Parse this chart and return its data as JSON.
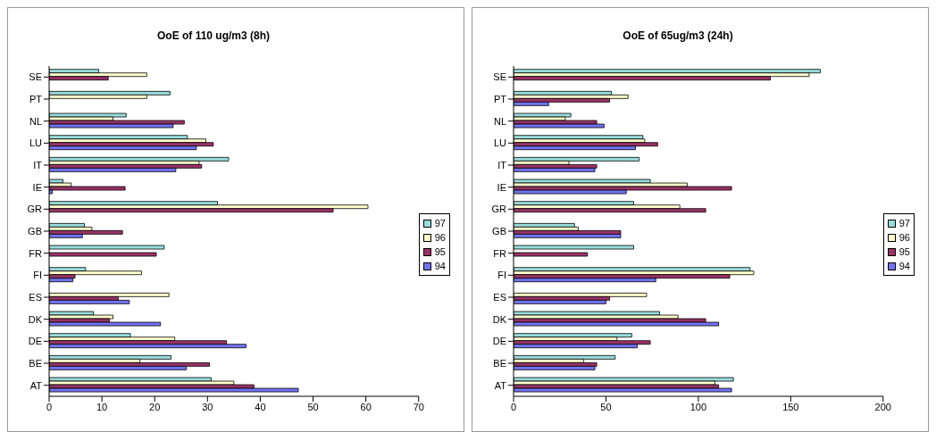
{
  "chart_data": [
    {
      "type": "bar",
      "orientation": "horizontal",
      "title": "OoE of 110 ug/m3 (8h)",
      "categories": [
        "SE",
        "PT",
        "NL",
        "LU",
        "IT",
        "IE",
        "GR",
        "GB",
        "FR",
        "FI",
        "ES",
        "DK",
        "DE",
        "BE",
        "AT"
      ],
      "series": [
        {
          "name": "97",
          "color": "#99dddd",
          "values": [
            9.4,
            22.9,
            14.6,
            26.2,
            34.0,
            2.6,
            31.9,
            6.7,
            21.8,
            6.9,
            null,
            8.4,
            15.4,
            23.1,
            30.7
          ]
        },
        {
          "name": "96",
          "color": "#ffffcc",
          "values": [
            18.5,
            18.5,
            12.1,
            29.7,
            28.4,
            4.2,
            60.4,
            8.1,
            null,
            17.5,
            22.7,
            12.1,
            23.8,
            17.2,
            35.0
          ]
        },
        {
          "name": "95",
          "color": "#993366",
          "values": [
            11.2,
            null,
            25.6,
            31.1,
            28.9,
            14.4,
            53.8,
            13.9,
            20.3,
            4.9,
            13.1,
            11.4,
            33.6,
            30.4,
            38.8
          ]
        },
        {
          "name": "94",
          "color": "#7373f0",
          "values": [
            null,
            null,
            23.5,
            27.9,
            24.0,
            0.6,
            null,
            6.3,
            null,
            4.5,
            15.2,
            21.1,
            37.3,
            26.0,
            47.2
          ]
        }
      ],
      "xlim": [
        0,
        70
      ],
      "xticks": [
        0,
        10,
        20,
        30,
        40,
        50,
        60,
        70
      ],
      "legend": "right",
      "grid": false
    },
    {
      "type": "bar",
      "orientation": "horizontal",
      "title": "OoE of 65ug/m3 (24h)",
      "categories": [
        "SE",
        "PT",
        "NL",
        "LU",
        "IT",
        "IE",
        "GR",
        "GB",
        "FR",
        "FI",
        "ES",
        "DK",
        "DE",
        "BE",
        "AT"
      ],
      "series": [
        {
          "name": "97",
          "color": "#99dddd",
          "values": [
            166,
            53,
            31,
            70,
            68,
            74,
            65,
            33,
            65,
            128,
            null,
            79,
            64,
            55,
            119
          ]
        },
        {
          "name": "96",
          "color": "#ffffcc",
          "values": [
            160,
            62,
            28,
            71,
            30,
            94,
            90,
            35,
            null,
            130,
            72,
            89,
            56,
            38,
            109
          ]
        },
        {
          "name": "95",
          "color": "#993366",
          "values": [
            139,
            52,
            45,
            78,
            45,
            118,
            104,
            58,
            40,
            117,
            52,
            104,
            74,
            45,
            111
          ]
        },
        {
          "name": "94",
          "color": "#7373f0",
          "values": [
            null,
            19,
            49,
            66,
            44,
            61,
            null,
            58,
            null,
            77,
            50,
            111,
            67,
            44,
            118
          ]
        }
      ],
      "xlim": [
        0,
        200
      ],
      "xticks": [
        0,
        50,
        100,
        150,
        200
      ],
      "legend": "right",
      "grid": false
    }
  ]
}
